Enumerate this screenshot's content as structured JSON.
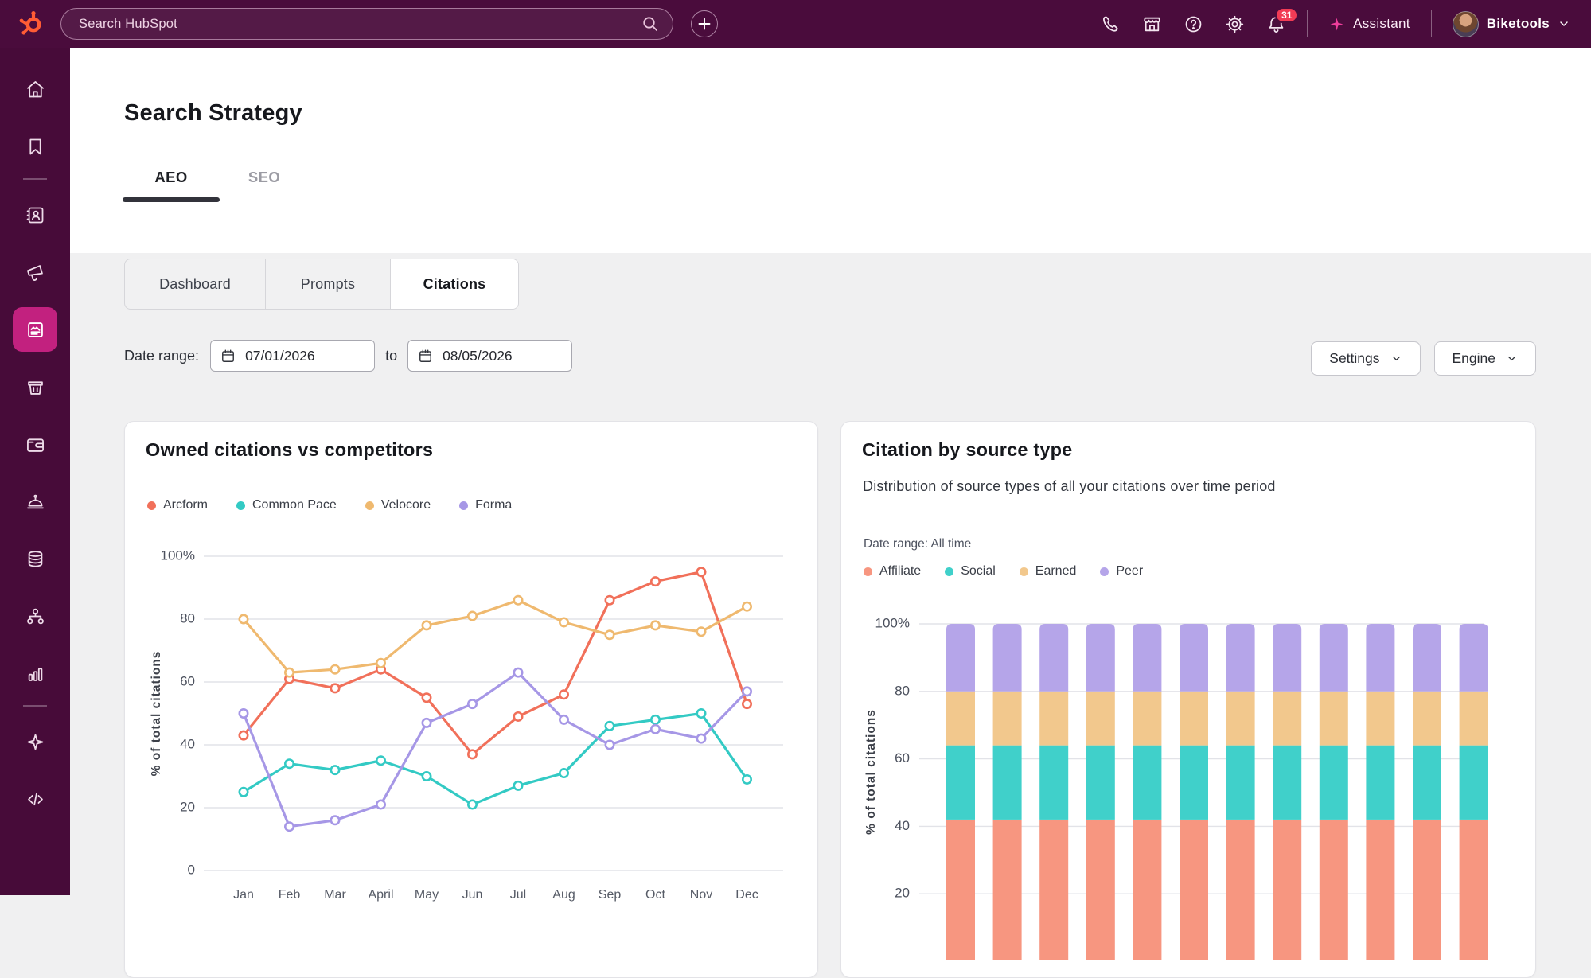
{
  "topbar": {
    "search_placeholder": "Search HubSpot",
    "notification_count": "31",
    "assistant_label": "Assistant",
    "account_label": "Biketools",
    "icons": [
      "hubspot-logo",
      "search-icon",
      "plus-icon",
      "phone-icon",
      "marketplace-icon",
      "help-icon",
      "settings-icon",
      "bell-icon",
      "sparkle-icon",
      "avatar",
      "chevron-down-icon"
    ],
    "colors": {
      "bar_bg": "#4a0c3c",
      "logo_orange": "#ff5c35",
      "badge_red": "#f23b55",
      "assistant_pink": "#ee3e9c"
    }
  },
  "sidebar": {
    "items": [
      "home",
      "bookmark",
      "contacts",
      "marketing",
      "content",
      "commerce",
      "payments",
      "service",
      "data",
      "automation",
      "reporting",
      "ai",
      "developer"
    ],
    "active_item": "content",
    "active_bg": "#c2217f"
  },
  "page": {
    "title": "Search Strategy",
    "primary_tabs": [
      {
        "label": "AEO",
        "active": true
      },
      {
        "label": "SEO",
        "active": false
      }
    ],
    "secondary_tabs": [
      {
        "label": "Dashboard",
        "active": false
      },
      {
        "label": "Prompts",
        "active": false
      },
      {
        "label": "Citations",
        "active": true
      }
    ],
    "date_range": {
      "label": "Date range:",
      "start": "07/01/2026",
      "to_label": "to",
      "end": "08/05/2026"
    },
    "actions": [
      {
        "label": "Settings"
      },
      {
        "label": "Engine"
      }
    ]
  },
  "chart_data": [
    {
      "type": "line",
      "title": "Owned citations vs competitors",
      "ylabel": "% of total citations",
      "ylim": [
        0,
        100
      ],
      "yticks": [
        0,
        20,
        40,
        60,
        80,
        100
      ],
      "ytick_top_label": "100%",
      "grid": true,
      "legend_position": "top",
      "categories": [
        "Jan",
        "Feb",
        "Mar",
        "April",
        "May",
        "Jun",
        "Jul",
        "Aug",
        "Sep",
        "Oct",
        "Nov",
        "Dec"
      ],
      "series": [
        {
          "name": "Arcform",
          "color": "#f1705a",
          "values": [
            43,
            61,
            58,
            64,
            55,
            37,
            49,
            56,
            86,
            92,
            95,
            53
          ]
        },
        {
          "name": "Common Pace",
          "color": "#33cac4",
          "values": [
            25,
            34,
            32,
            35,
            30,
            21,
            27,
            31,
            46,
            48,
            50,
            29
          ]
        },
        {
          "name": "Velocore",
          "color": "#efb96f",
          "values": [
            80,
            63,
            64,
            66,
            78,
            81,
            86,
            79,
            75,
            78,
            76,
            84
          ]
        },
        {
          "name": "Forma",
          "color": "#a697e6",
          "values": [
            50,
            14,
            16,
            21,
            47,
            53,
            63,
            48,
            40,
            45,
            42,
            57
          ]
        }
      ]
    },
    {
      "type": "stacked-bar",
      "title": "Citation by source type",
      "subtitle": "Distribution of source types of all your citations over time period",
      "note": "Date range: All time",
      "ylabel": "% of total citations",
      "ylim": [
        0,
        100
      ],
      "yticks": [
        20,
        40,
        60,
        80,
        100
      ],
      "ytick_top_label": "100%",
      "grid": true,
      "legend_position": "top",
      "bar_count": 12,
      "series": [
        {
          "name": "Affiliate",
          "color": "#f79680",
          "value": 42
        },
        {
          "name": "Social",
          "color": "#40d0ca",
          "value": 22
        },
        {
          "name": "Earned",
          "color": "#f2c88d",
          "value": 16
        },
        {
          "name": "Peer",
          "color": "#b5a5e9",
          "value": 20
        }
      ]
    }
  ]
}
